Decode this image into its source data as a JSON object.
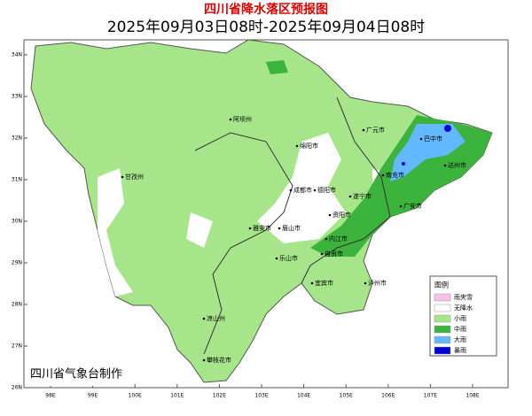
{
  "title": "四川省降水落区预报图",
  "subtitle": "2025年09月03日08时-2025年09月04日08时",
  "footer": "四川省气象台制作",
  "map": {
    "lonlim": [
      97.37,
      108.84
    ],
    "latlim": [
      26,
      34.36
    ],
    "lat_ticks": [
      {
        "value": 26,
        "label": "26N"
      },
      {
        "value": 27,
        "label": "27N"
      },
      {
        "value": 28,
        "label": "28N"
      },
      {
        "value": 29,
        "label": "29N"
      },
      {
        "value": 30,
        "label": "30N"
      },
      {
        "value": 31,
        "label": "31N"
      },
      {
        "value": 32,
        "label": "32N"
      },
      {
        "value": 33,
        "label": "33N"
      },
      {
        "value": 34,
        "label": "34N"
      }
    ],
    "lon_ticks": [
      {
        "value": 98,
        "label": "98E"
      },
      {
        "value": 99,
        "label": "99E"
      },
      {
        "value": 100,
        "label": "100E"
      },
      {
        "value": 101,
        "label": "101E"
      },
      {
        "value": 102,
        "label": "102E"
      },
      {
        "value": 103,
        "label": "103E"
      },
      {
        "value": 104,
        "label": "104E"
      },
      {
        "value": 105,
        "label": "105E"
      },
      {
        "value": 106,
        "label": "106E"
      },
      {
        "value": 107,
        "label": "107E"
      },
      {
        "value": 108,
        "label": "108E"
      }
    ],
    "cities": [
      "阿坝州",
      "绵阳市",
      "广元市",
      "巴中市",
      "达州市",
      "甘孜州",
      "德阳市",
      "成都市",
      "南充市",
      "遂宁市",
      "广安市",
      "资阳市",
      "雅安市",
      "眉山市",
      "内江市",
      "乐山市",
      "自贡市",
      "宜宾市",
      "泸州市",
      "凉山州",
      "攀枝花市"
    ]
  },
  "legend": {
    "title": "图例",
    "items": [
      {
        "label": "雨夹雪",
        "color": "#f9c0e8"
      },
      {
        "label": "无降水",
        "color": "#ffffff"
      },
      {
        "label": "小雨",
        "color": "#a6e58a"
      },
      {
        "label": "中雨",
        "color": "#3cb33c"
      },
      {
        "label": "大雨",
        "color": "#63b8ff"
      },
      {
        "label": "暴雨",
        "color": "#0000d8"
      }
    ]
  }
}
